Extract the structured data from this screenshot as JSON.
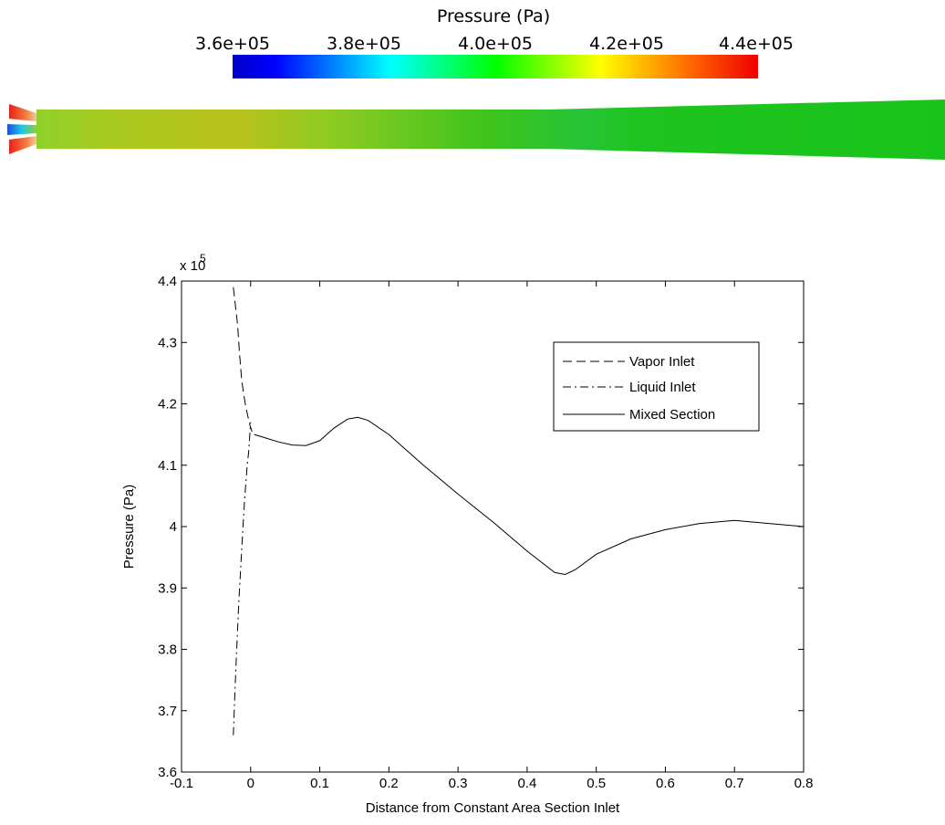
{
  "colorbar": {
    "title": "Pressure (Pa)",
    "tick_labels": [
      "3.6e+05",
      "3.8e+05",
      "4.0e+05",
      "4.2e+05",
      "4.4e+05"
    ],
    "range": [
      360000,
      440000
    ],
    "colormap": "jet"
  },
  "contour": {
    "description_colors": {
      "inlet_tip": "#ee2200",
      "core": "#1e90ff",
      "body_start": "#9ccc22",
      "body_mid": "#b5c21a",
      "body_end": "#18c21a"
    }
  },
  "chart_data": {
    "type": "line",
    "multiplier": "x 10",
    "multiplier_exp": "5",
    "xlabel": "Distance from Constant Area Section Inlet",
    "ylabel": "Pressure (Pa)",
    "xlim": [
      -0.1,
      0.8
    ],
    "ylim": [
      3.6,
      4.4
    ],
    "xticks": [
      "-0.1",
      "0",
      "0.1",
      "0.2",
      "0.3",
      "0.4",
      "0.5",
      "0.6",
      "0.7",
      "0.8"
    ],
    "yticks": [
      "3.6",
      "3.7",
      "3.8",
      "3.9",
      "4",
      "4.1",
      "4.2",
      "4.3",
      "4.4"
    ],
    "grid": false,
    "legend_position": "top-right",
    "series": [
      {
        "name": "Vapor Inlet",
        "style": "dashed",
        "x": [
          -0.025,
          -0.022,
          -0.019,
          -0.016,
          -0.013,
          -0.01,
          -0.007,
          -0.004,
          -0.001,
          0.002,
          0.005
        ],
        "y": [
          4.39,
          4.36,
          4.33,
          4.28,
          4.24,
          4.215,
          4.195,
          4.18,
          4.165,
          4.155,
          4.15
        ]
      },
      {
        "name": "Liquid Inlet",
        "style": "dashdot",
        "x": [
          -0.025,
          -0.023,
          -0.021,
          -0.019,
          -0.017,
          -0.015,
          -0.013,
          -0.011,
          -0.009,
          -0.007,
          -0.005,
          -0.003,
          0.0
        ],
        "y": [
          3.66,
          3.72,
          3.78,
          3.83,
          3.88,
          3.92,
          3.96,
          4.0,
          4.04,
          4.07,
          4.1,
          4.12,
          4.17
        ]
      },
      {
        "name": "Mixed Section",
        "style": "solid",
        "x": [
          0.005,
          0.02,
          0.04,
          0.06,
          0.08,
          0.1,
          0.12,
          0.14,
          0.155,
          0.17,
          0.2,
          0.25,
          0.3,
          0.35,
          0.4,
          0.44,
          0.455,
          0.47,
          0.5,
          0.55,
          0.6,
          0.65,
          0.7,
          0.75,
          0.8
        ],
        "y": [
          4.15,
          4.145,
          4.138,
          4.133,
          4.132,
          4.14,
          4.16,
          4.175,
          4.178,
          4.173,
          4.15,
          4.1,
          4.053,
          4.008,
          3.96,
          3.925,
          3.922,
          3.93,
          3.955,
          3.98,
          3.995,
          4.005,
          4.01,
          4.005,
          4.0
        ]
      }
    ]
  }
}
